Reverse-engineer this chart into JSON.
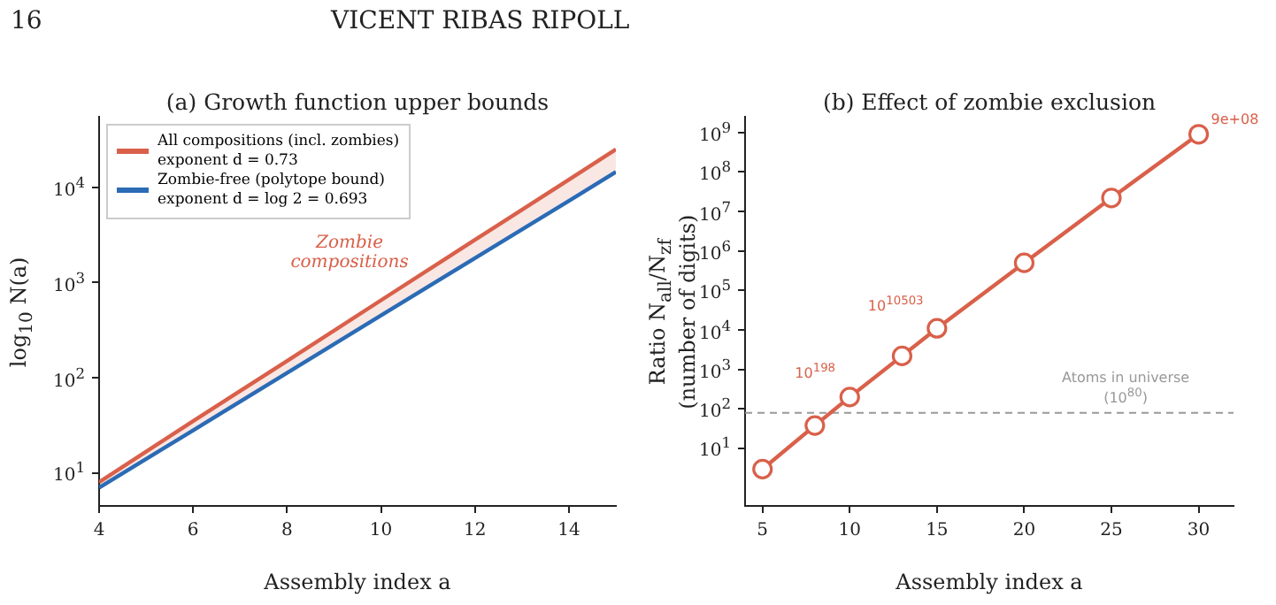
{
  "chart_data": [
    {
      "type": "line",
      "title": "(a)  Growth function upper bounds",
      "xlabel": "Assembly index a",
      "ylabel": "log$_{10}$ N(a)",
      "log": "y",
      "legend": "top left",
      "marker": "none",
      "annotations": [
        "16",
        "VICENT RIBAS RIPOLL",
        "Zombie\ncompositions"
      ],
      "x": [
        4,
        6,
        8,
        10,
        12,
        14,
        15
      ],
      "xlim": [
        4,
        15
      ],
      "xticks": [
        {
          "value": 4,
          "label": "4"
        },
        {
          "value": 6,
          "label": "6"
        },
        {
          "value": 8,
          "label": "8"
        },
        {
          "value": 10,
          "label": "10"
        },
        {
          "value": 12,
          "label": "12"
        },
        {
          "value": 14,
          "label": "14"
        }
      ],
      "ylim": [
        4.5,
        55000
      ],
      "yticks": [
        {
          "value": 10,
          "label": "10$^{1}$"
        },
        {
          "value": 100,
          "label": "10$^{2}$"
        },
        {
          "value": 1000,
          "label": "10$^{3}$"
        },
        {
          "value": 10000,
          "label": "10$^{4}$"
        }
      ],
      "series": [
        {
          "name": "All compositions (incl. zombies)\nexponent d = 0.73",
          "color": "#d9604a",
          "values": [
            8,
            35,
            150,
            650,
            2800,
            12000,
            25000
          ],
          "lower": [
            7,
            28,
            112,
            450,
            1800,
            7200,
            14500
          ],
          "upper": [
            8,
            35,
            150,
            650,
            2800,
            12000,
            25000
          ]
        },
        {
          "name": "Zombie-free (polytope bound)\nexponent d = log 2 = 0.693",
          "color": "#2b6bb5",
          "values": [
            7,
            28,
            112,
            450,
            1800,
            7200,
            14500
          ]
        }
      ]
    },
    {
      "type": "line",
      "title": "(b)  Effect of zombie exclusion",
      "xlabel": "Assembly index a",
      "ylabel": "Ratio N$_{all}$/N$_{zf}$\n(number of digits)",
      "log": "y",
      "marker": "circle",
      "annotations": [
        {
          "text": "10$^{198}$",
          "x": 10,
          "y": 200
        },
        {
          "text": "10$^{10503}$",
          "x": 15,
          "y": 11000
        },
        {
          "text": "9e+08",
          "x": 30,
          "y": 900000000
        }
      ],
      "x": [
        5,
        8,
        10,
        13,
        15,
        20,
        25,
        30
      ],
      "xlim": [
        4,
        32
      ],
      "xticks": [
        {
          "value": 5,
          "label": "5"
        },
        {
          "value": 10,
          "label": "10"
        },
        {
          "value": 15,
          "label": "15"
        },
        {
          "value": 20,
          "label": "20"
        },
        {
          "value": 25,
          "label": "25"
        },
        {
          "value": 30,
          "label": "30"
        }
      ],
      "ylim": [
        0.35,
        2500000000
      ],
      "yticks": [
        {
          "value": 10,
          "label": "10$^{1}$"
        },
        {
          "value": 100,
          "label": "10$^{2}$"
        },
        {
          "value": 1000,
          "label": "10$^{3}$"
        },
        {
          "value": 10000,
          "label": "10$^{4}$"
        },
        {
          "value": 100000,
          "label": "10$^{5}$"
        },
        {
          "value": 1000000,
          "label": "10$^{6}$"
        },
        {
          "value": 10000000,
          "label": "10$^{7}$"
        },
        {
          "value": 100000000,
          "label": "10$^{8}$"
        },
        {
          "value": 1000000000,
          "label": "10$^{9}$"
        }
      ],
      "ref_lines": [
        {
          "axis": "y",
          "value": 80,
          "label": "Atoms in universe\n(10$^{80}$)",
          "color": "#999999",
          "line_style": "dashed"
        }
      ],
      "series": [
        {
          "color": "#d9604a",
          "values": [
            3,
            38,
            200,
            2200,
            11000,
            500000,
            22000000,
            900000000
          ]
        }
      ]
    }
  ]
}
